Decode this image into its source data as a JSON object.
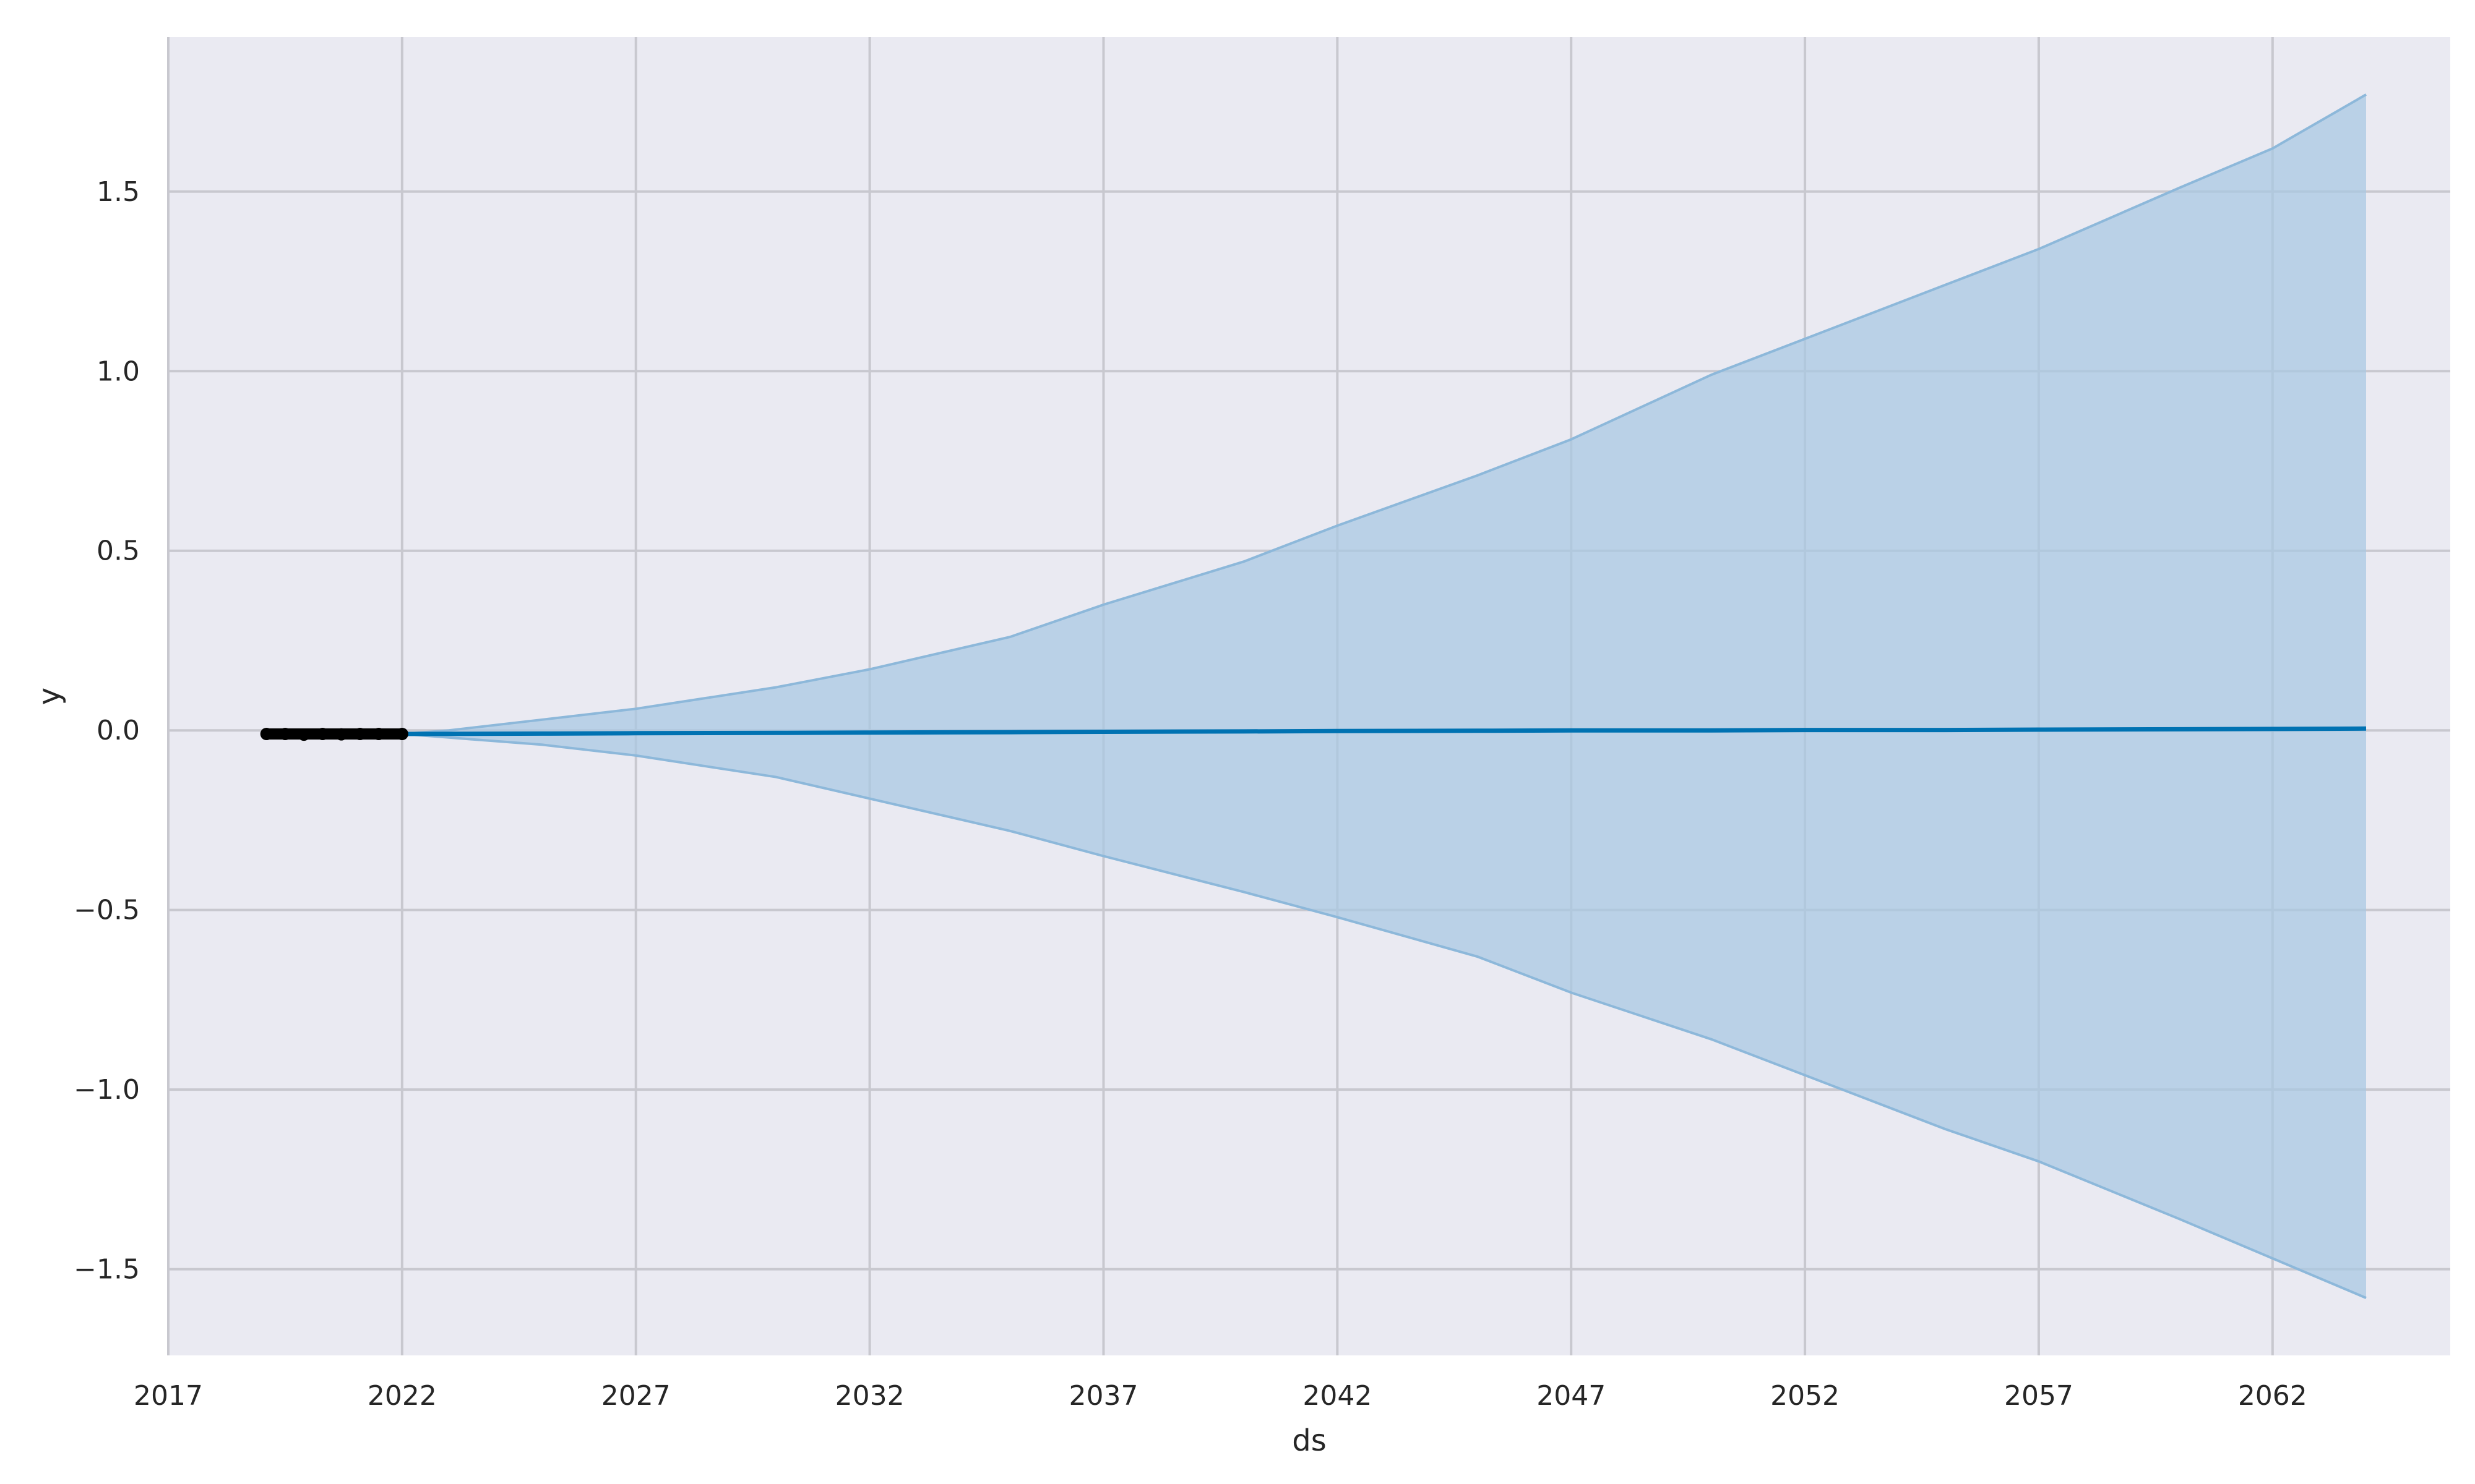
{
  "chart_data": {
    "type": "area",
    "title": "",
    "xlabel": "ds",
    "ylabel": "y",
    "xlim": [
      2017.0,
      2065.8
    ],
    "ylim": [
      -1.74,
      1.93
    ],
    "xticks": [
      2017,
      2022,
      2027,
      2032,
      2037,
      2042,
      2047,
      2052,
      2057,
      2062
    ],
    "xtick_labels": [
      "2017",
      "2022",
      "2027",
      "2032",
      "2037",
      "2042",
      "2047",
      "2052",
      "2057",
      "2062"
    ],
    "yticks": [
      1.5,
      1.0,
      0.5,
      0.0,
      -0.5,
      -1.0,
      -1.5
    ],
    "ytick_labels": [
      "1.5",
      "1.0",
      "0.5",
      "0.0",
      "−0.5",
      "−1.0",
      "−1.5"
    ],
    "grid": true,
    "legend": "none",
    "series": [
      {
        "kind": "observed",
        "x": [
          2019.1,
          2019.5,
          2019.9,
          2020.3,
          2020.7,
          2021.1,
          2021.5,
          2022.0
        ],
        "y": [
          -0.01,
          -0.01,
          -0.012,
          -0.01,
          -0.011,
          -0.01,
          -0.01,
          -0.01
        ]
      },
      {
        "kind": "forecast",
        "x": [
          2019.1,
          2022,
          2025,
          2027,
          2030,
          2032,
          2035,
          2037,
          2040,
          2042,
          2045,
          2047,
          2050,
          2052,
          2055,
          2057,
          2060,
          2062,
          2064
        ],
        "y": [
          -0.01,
          -0.01,
          -0.009,
          -0.008,
          -0.007,
          -0.006,
          -0.005,
          -0.004,
          -0.003,
          -0.002,
          -0.001,
          0.0,
          0.0,
          0.001,
          0.001,
          0.002,
          0.003,
          0.004,
          0.005
        ]
      },
      {
        "kind": "uncertainty_interval",
        "x": [
          2019.1,
          2022,
          2023,
          2025,
          2027,
          2030,
          2032,
          2035,
          2037,
          2040,
          2042,
          2045,
          2047,
          2050,
          2052,
          2055,
          2057,
          2060,
          2062,
          2064
        ],
        "upper": [
          -0.01,
          -0.01,
          0.0,
          0.03,
          0.06,
          0.12,
          0.17,
          0.26,
          0.35,
          0.47,
          0.57,
          0.71,
          0.81,
          0.99,
          1.09,
          1.24,
          1.34,
          1.51,
          1.62,
          1.77
        ],
        "lower": [
          -0.01,
          -0.01,
          -0.02,
          -0.04,
          -0.07,
          -0.13,
          -0.19,
          -0.28,
          -0.35,
          -0.45,
          -0.52,
          -0.63,
          -0.73,
          -0.86,
          -0.96,
          -1.11,
          -1.2,
          -1.36,
          -1.47,
          -1.58
        ]
      }
    ],
    "colors": {
      "background": "#eaeaf2",
      "grid": "#c8c8cf",
      "forecast_line": "#0072b2",
      "interval_fill": "#a7c8e2",
      "interval_edge": "#8db8da",
      "observed_points": "#000000"
    }
  }
}
